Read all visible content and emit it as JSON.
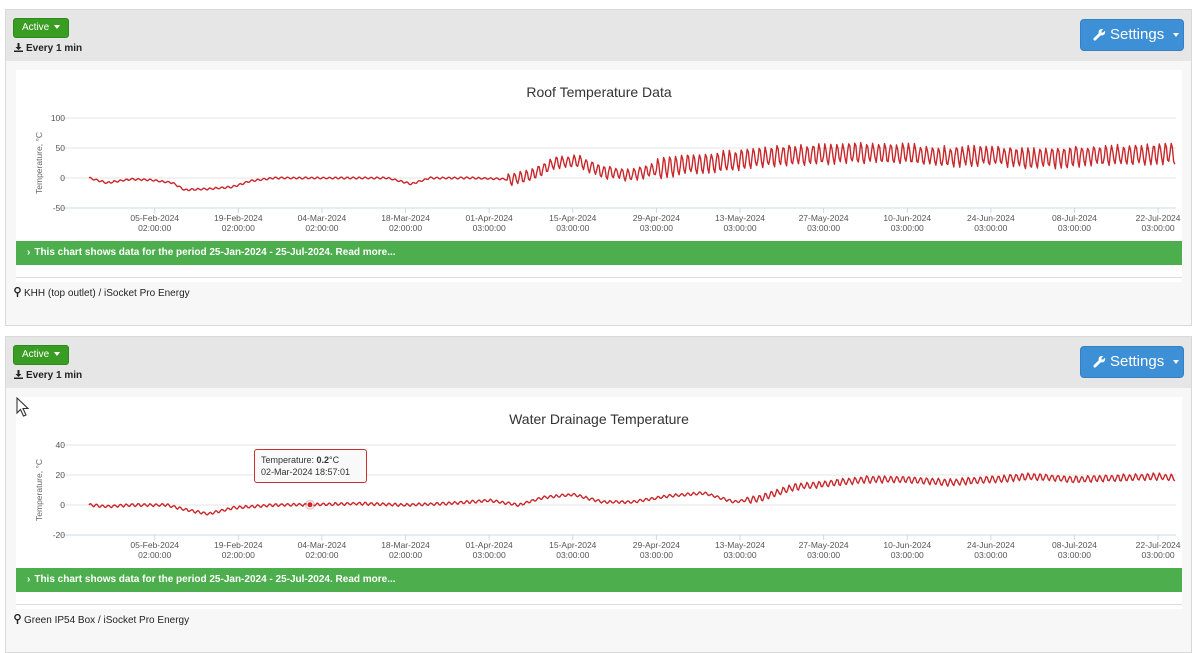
{
  "panels": [
    {
      "status_label": "Active",
      "frequency": "Every 1 min",
      "settings_label": "Settings",
      "banner": "This chart shows data for the period 25-Jan-2024 - 25-Jul-2024. Read more...",
      "location": "KHH (top outlet) / iSocket Pro Energy"
    },
    {
      "status_label": "Active",
      "frequency": "Every 1 min",
      "settings_label": "Settings",
      "banner": "This chart shows data for the period 25-Jan-2024 - 25-Jul-2024. Read more...",
      "location": "Green IP54 Box / iSocket Pro Energy",
      "tooltip": {
        "label": "Temperature: ",
        "value": "0.2",
        "unit": "°C",
        "datetime": "02-Mar-2024 18:57:01"
      }
    }
  ],
  "icons": {
    "status_caret": "chevron-down-icon",
    "download": "download-icon",
    "settings": "wrench-icon",
    "banner": "chevron-right-icon",
    "location": "map-pin-icon",
    "cursor": "mouse-pointer-icon"
  },
  "colors": {
    "series": "#c8282c",
    "banner": "#4cae4c",
    "settings": "#3d8fd6",
    "status": "#3a9d23"
  },
  "chart_data": [
    {
      "type": "line",
      "title": "Roof Temperature Data",
      "ylabel": "Temperature, °C",
      "ylim": [
        -50,
        100
      ],
      "yticks": [
        100,
        50,
        0,
        -50
      ],
      "xlim": [
        "2024-01-25",
        "2024-07-25"
      ],
      "grid": true,
      "xticks": [
        [
          "05-Feb-2024",
          "02:00:00"
        ],
        [
          "19-Feb-2024",
          "02:00:00"
        ],
        [
          "04-Mar-2024",
          "02:00:00"
        ],
        [
          "18-Mar-2024",
          "02:00:00"
        ],
        [
          "01-Apr-2024",
          "03:00:00"
        ],
        [
          "15-Apr-2024",
          "03:00:00"
        ],
        [
          "29-Apr-2024",
          "03:00:00"
        ],
        [
          "13-May-2024",
          "03:00:00"
        ],
        [
          "27-May-2024",
          "03:00:00"
        ],
        [
          "10-Jun-2024",
          "03:00:00"
        ],
        [
          "24-Jun-2024",
          "03:00:00"
        ],
        [
          "08-Jul-2024",
          "03:00:00"
        ],
        [
          "22-Jul-2024",
          "03:00:00"
        ]
      ],
      "series": [
        {
          "x": [
            "2024-01-25",
            "2024-01-28",
            "2024-02-01",
            "2024-02-04",
            "2024-02-08",
            "2024-02-10",
            "2024-02-14",
            "2024-02-18",
            "2024-02-21",
            "2024-02-25",
            "2024-03-01",
            "2024-03-08",
            "2024-03-15",
            "2024-03-19",
            "2024-03-22",
            "2024-03-29",
            "2024-04-05",
            "2024-04-08",
            "2024-04-12",
            "2024-04-16",
            "2024-04-20",
            "2024-04-25",
            "2024-04-29",
            "2024-05-06",
            "2024-05-13",
            "2024-05-20",
            "2024-05-27",
            "2024-06-03",
            "2024-06-10",
            "2024-06-17",
            "2024-06-24",
            "2024-07-01",
            "2024-07-08",
            "2024-07-15",
            "2024-07-22",
            "2024-07-25"
          ],
          "y": [
            0,
            -8,
            -2,
            -3,
            -8,
            -20,
            -18,
            -15,
            -5,
            0,
            0,
            0,
            0,
            -10,
            0,
            0,
            -2,
            5,
            25,
            28,
            10,
            5,
            15,
            25,
            30,
            38,
            40,
            42,
            40,
            35,
            38,
            32,
            35,
            38,
            40,
            40
          ]
        }
      ]
    },
    {
      "type": "line",
      "title": "Water Drainage Temperature",
      "ylabel": "Temperature, °C",
      "ylim": [
        -20,
        40
      ],
      "yticks": [
        40,
        20,
        0,
        -20
      ],
      "xlim": [
        "2024-01-25",
        "2024-07-25"
      ],
      "grid": true,
      "xticks": [
        [
          "05-Feb-2024",
          "02:00:00"
        ],
        [
          "19-Feb-2024",
          "02:00:00"
        ],
        [
          "04-Mar-2024",
          "02:00:00"
        ],
        [
          "18-Mar-2024",
          "02:00:00"
        ],
        [
          "01-Apr-2024",
          "03:00:00"
        ],
        [
          "15-Apr-2024",
          "03:00:00"
        ],
        [
          "29-Apr-2024",
          "03:00:00"
        ],
        [
          "13-May-2024",
          "03:00:00"
        ],
        [
          "27-May-2024",
          "03:00:00"
        ],
        [
          "10-Jun-2024",
          "03:00:00"
        ],
        [
          "24-Jun-2024",
          "03:00:00"
        ],
        [
          "08-Jul-2024",
          "03:00:00"
        ],
        [
          "22-Jul-2024",
          "03:00:00"
        ]
      ],
      "series": [
        {
          "x": [
            "2024-01-25",
            "2024-01-28",
            "2024-02-01",
            "2024-02-07",
            "2024-02-10",
            "2024-02-14",
            "2024-02-18",
            "2024-02-25",
            "2024-03-02",
            "2024-03-10",
            "2024-03-18",
            "2024-03-25",
            "2024-04-01",
            "2024-04-06",
            "2024-04-10",
            "2024-04-15",
            "2024-04-20",
            "2024-04-25",
            "2024-05-01",
            "2024-05-07",
            "2024-05-12",
            "2024-05-17",
            "2024-05-22",
            "2024-05-27",
            "2024-06-03",
            "2024-06-10",
            "2024-06-17",
            "2024-06-24",
            "2024-07-01",
            "2024-07-08",
            "2024-07-15",
            "2024-07-22",
            "2024-07-25"
          ],
          "y": [
            0,
            -1,
            0,
            0,
            -3,
            -6,
            -2,
            0,
            0.2,
            1,
            0,
            1,
            3,
            0,
            5,
            7,
            2,
            2,
            6,
            8,
            2,
            5,
            12,
            14,
            17,
            17,
            15,
            17,
            19,
            17,
            18,
            19,
            18
          ]
        }
      ]
    }
  ]
}
